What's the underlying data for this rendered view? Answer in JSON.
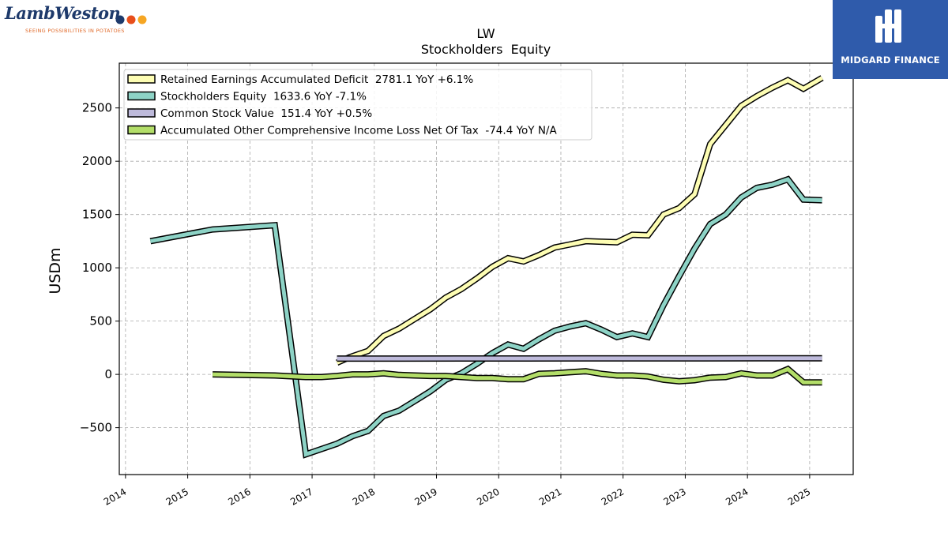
{
  "branding": {
    "company_logo": "LambWeston",
    "company_tagline": "SEEING POSSIBILITIES IN POTATOES",
    "sponsor_logo": "MIDGARD FINANCE"
  },
  "colors": {
    "retained": "#fdfdb3",
    "equity": "#8dd3c6",
    "common": "#bebadb",
    "aoci": "#b3de69",
    "sponsor_bg": "#2f5bab"
  },
  "chart_data": {
    "type": "line",
    "title": "LW",
    "subtitle": "Stockholders  Equity",
    "ylabel": "USDm",
    "xlabel": "",
    "xlim": [
      2013.9,
      2025.7
    ],
    "ylim": [
      -940,
      2920
    ],
    "yticks": [
      -500,
      0,
      500,
      1000,
      1500,
      2000,
      2500
    ],
    "ytick_labels": [
      "−500",
      "0",
      "500",
      "1000",
      "1500",
      "2000",
      "2500"
    ],
    "xticks": [
      2014,
      2015,
      2016,
      2017,
      2018,
      2019,
      2020,
      2021,
      2022,
      2023,
      2024,
      2025
    ],
    "xtick_labels": [
      "2014",
      "2015",
      "2016",
      "2017",
      "2018",
      "2019",
      "2020",
      "2021",
      "2022",
      "2023",
      "2024",
      "2025"
    ],
    "grid": true,
    "legend_position": "top-left",
    "series": [
      {
        "name": "Retained Earnings Accumulated Deficit",
        "legend": "Retained Earnings Accumulated Deficit  2781.1 YoY +6.1%",
        "color_key": "retained",
        "x": [
          2017.4,
          2017.6,
          2017.9,
          2018.15,
          2018.4,
          2018.65,
          2018.9,
          2019.15,
          2019.4,
          2019.65,
          2019.9,
          2020.15,
          2020.4,
          2020.65,
          2020.9,
          2021.15,
          2021.4,
          2021.65,
          2021.9,
          2022.15,
          2022.4,
          2022.65,
          2022.9,
          2023.15,
          2023.4,
          2023.65,
          2023.9,
          2024.15,
          2024.4,
          2024.65,
          2024.9,
          2025.2
        ],
        "y": [
          110,
          160,
          220,
          360,
          430,
          520,
          610,
          720,
          800,
          900,
          1010,
          1090,
          1060,
          1120,
          1190,
          1220,
          1250,
          1245,
          1240,
          1310,
          1305,
          1500,
          1560,
          1690,
          2160,
          2340,
          2520,
          2610,
          2690,
          2760,
          2680,
          2781.1
        ]
      },
      {
        "name": "Stockholders Equity",
        "legend": "Stockholders Equity  1633.6 YoY -7.1%",
        "color_key": "equity",
        "x": [
          2014.4,
          2015.4,
          2016.4,
          2016.9,
          2017.4,
          2017.65,
          2017.9,
          2018.15,
          2018.4,
          2018.65,
          2018.9,
          2019.15,
          2019.4,
          2019.65,
          2019.9,
          2020.15,
          2020.4,
          2020.65,
          2020.9,
          2021.15,
          2021.4,
          2021.65,
          2021.9,
          2022.15,
          2022.4,
          2022.65,
          2022.9,
          2023.15,
          2023.4,
          2023.65,
          2023.9,
          2024.15,
          2024.4,
          2024.65,
          2024.9,
          2025.2
        ],
        "y": [
          1250,
          1360,
          1400,
          -750,
          -650,
          -580,
          -530,
          -390,
          -340,
          -250,
          -160,
          -50,
          10,
          100,
          200,
          280,
          240,
          330,
          410,
          450,
          480,
          420,
          350,
          385,
          350,
          650,
          920,
          1180,
          1410,
          1500,
          1660,
          1750,
          1780,
          1830,
          1640,
          1633.6
        ]
      },
      {
        "name": "Common Stock Value",
        "legend": "Common Stock Value  151.4 YoY +0.5%",
        "color_key": "common",
        "x": [
          2017.4,
          2018.4,
          2019.4,
          2020.4,
          2021.4,
          2022.4,
          2023.15,
          2024.15,
          2025.2
        ],
        "y": [
          148,
          148,
          149,
          149,
          150,
          150,
          150,
          151,
          151.4
        ]
      },
      {
        "name": "Accumulated Other Comprehensive Income Loss Net Of Tax",
        "legend": "Accumulated Other Comprehensive Income Loss Net Of Tax  -74.4 YoY N/A",
        "color_key": "aoci",
        "x": [
          2015.4,
          2016.4,
          2016.9,
          2017.15,
          2017.4,
          2017.65,
          2017.9,
          2018.15,
          2018.4,
          2018.65,
          2018.9,
          2019.15,
          2019.4,
          2019.65,
          2019.9,
          2020.15,
          2020.4,
          2020.65,
          2020.9,
          2021.15,
          2021.4,
          2021.65,
          2021.9,
          2022.15,
          2022.4,
          2022.65,
          2022.9,
          2023.15,
          2023.4,
          2023.65,
          2023.9,
          2024.15,
          2024.4,
          2024.65,
          2024.9,
          2025.2
        ],
        "y": [
          0,
          -10,
          -25,
          -25,
          -15,
          0,
          0,
          10,
          -5,
          -10,
          -15,
          -15,
          -25,
          -35,
          -35,
          -45,
          -45,
          5,
          10,
          20,
          30,
          5,
          -10,
          -10,
          -20,
          -50,
          -65,
          -55,
          -30,
          -25,
          10,
          -10,
          -10,
          50,
          -75,
          -74.4
        ]
      }
    ]
  }
}
